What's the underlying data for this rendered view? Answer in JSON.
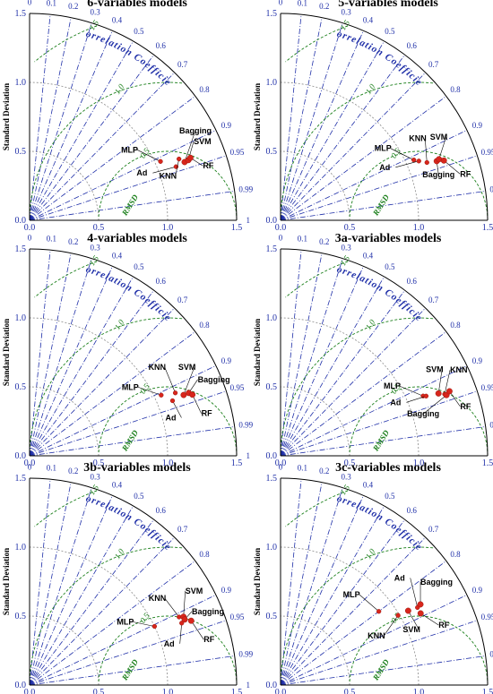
{
  "figure": {
    "ylabel": "Standard Deviation",
    "correlation_label": "Correlation Coefficient",
    "rmsd_label": "RMSD",
    "sd_ticks": [
      "0.0",
      "0.5",
      "1.0",
      "1.5"
    ],
    "corr_ticks": [
      "0",
      "0.1",
      "0.2",
      "0.3",
      "0.4",
      "0.5",
      "0.6",
      "0.7",
      "0.8",
      "0.9",
      "0.95",
      "0.99",
      "1"
    ],
    "rms_labels": [
      "0.5",
      "1.0",
      "1.5"
    ],
    "colors": {
      "axis": "#1f2fa8",
      "rms": "#1a7f1a",
      "marker": "#d8261c",
      "arc": "#8a8a8a"
    }
  },
  "chart_data": [
    {
      "type": "scatter",
      "kind": "taylor-diagram",
      "title": "6-variables models",
      "sd_range": [
        0,
        1.5
      ],
      "points": [
        {
          "name": "MLP",
          "sd": 1.04,
          "corr": 0.912
        },
        {
          "name": "Ad",
          "sd": 1.13,
          "corr": 0.939
        },
        {
          "name": "KNN",
          "sd": 1.17,
          "corr": 0.925
        },
        {
          "name": "Bagging",
          "sd": 1.2,
          "corr": 0.936
        },
        {
          "name": "SVM",
          "sd": 1.23,
          "corr": 0.935
        },
        {
          "name": "RF",
          "sd": 1.25,
          "corr": 0.932
        }
      ]
    },
    {
      "type": "scatter",
      "kind": "taylor-diagram",
      "title": "5-variables models",
      "sd_range": [
        0,
        1.5
      ],
      "points": [
        {
          "name": "MLP",
          "sd": 1.06,
          "corr": 0.911
        },
        {
          "name": "Ad",
          "sd": 1.09,
          "corr": 0.919
        },
        {
          "name": "KNN",
          "sd": 1.14,
          "corr": 0.93
        },
        {
          "name": "Bagging",
          "sd": 1.21,
          "corr": 0.935
        },
        {
          "name": "SVM",
          "sd": 1.23,
          "corr": 0.933
        },
        {
          "name": "RF",
          "sd": 1.26,
          "corr": 0.939
        }
      ]
    },
    {
      "type": "scatter",
      "kind": "taylor-diagram",
      "title": "4-variables models",
      "sd_range": [
        0,
        1.5
      ],
      "points": [
        {
          "name": "MLP",
          "sd": 1.05,
          "corr": 0.908
        },
        {
          "name": "Ad",
          "sd": 1.11,
          "corr": 0.933
        },
        {
          "name": "KNN",
          "sd": 1.15,
          "corr": 0.918
        },
        {
          "name": "SVM",
          "sd": 1.2,
          "corr": 0.93
        },
        {
          "name": "Bagging",
          "sd": 1.24,
          "corr": 0.93
        },
        {
          "name": "RF",
          "sd": 1.26,
          "corr": 0.936
        }
      ]
    },
    {
      "type": "scatter",
      "kind": "taylor-diagram",
      "title": "3a-variables models",
      "sd_range": [
        0,
        1.5
      ],
      "points": [
        {
          "name": "MLP",
          "sd": 1.12,
          "corr": 0.922
        },
        {
          "name": "Ad",
          "sd": 1.14,
          "corr": 0.925
        },
        {
          "name": "SVM",
          "sd": 1.23,
          "corr": 0.93
        },
        {
          "name": "KNN",
          "sd": 1.27,
          "corr": 0.936
        },
        {
          "name": "Bagging",
          "sd": 1.28,
          "corr": 0.939
        },
        {
          "name": "RF",
          "sd": 1.31,
          "corr": 0.934
        }
      ]
    },
    {
      "type": "scatter",
      "kind": "taylor-diagram",
      "title": "3b-variables models",
      "sd_range": [
        0,
        1.5
      ],
      "points": [
        {
          "name": "MLP",
          "sd": 1.0,
          "corr": 0.905
        },
        {
          "name": "KNN",
          "sd": 1.19,
          "corr": 0.91
        },
        {
          "name": "SVM",
          "sd": 1.22,
          "corr": 0.914
        },
        {
          "name": "Bagging",
          "sd": 1.22,
          "corr": 0.921
        },
        {
          "name": "Ad",
          "sd": 1.19,
          "corr": 0.926
        },
        {
          "name": "RF",
          "sd": 1.26,
          "corr": 0.929
        }
      ]
    },
    {
      "type": "scatter",
      "kind": "taylor-diagram",
      "title": "3c-variables models",
      "sd_range": [
        0,
        1.5
      ],
      "points": [
        {
          "name": "MLP",
          "sd": 0.89,
          "corr": 0.8
        },
        {
          "name": "KNN",
          "sd": 0.99,
          "corr": 0.86
        },
        {
          "name": "SVM",
          "sd": 1.07,
          "corr": 0.864
        },
        {
          "name": "Ad",
          "sd": 1.14,
          "corr": 0.87
        },
        {
          "name": "Bagging",
          "sd": 1.17,
          "corr": 0.866
        },
        {
          "name": "RF",
          "sd": 1.14,
          "corr": 0.89
        }
      ]
    }
  ]
}
